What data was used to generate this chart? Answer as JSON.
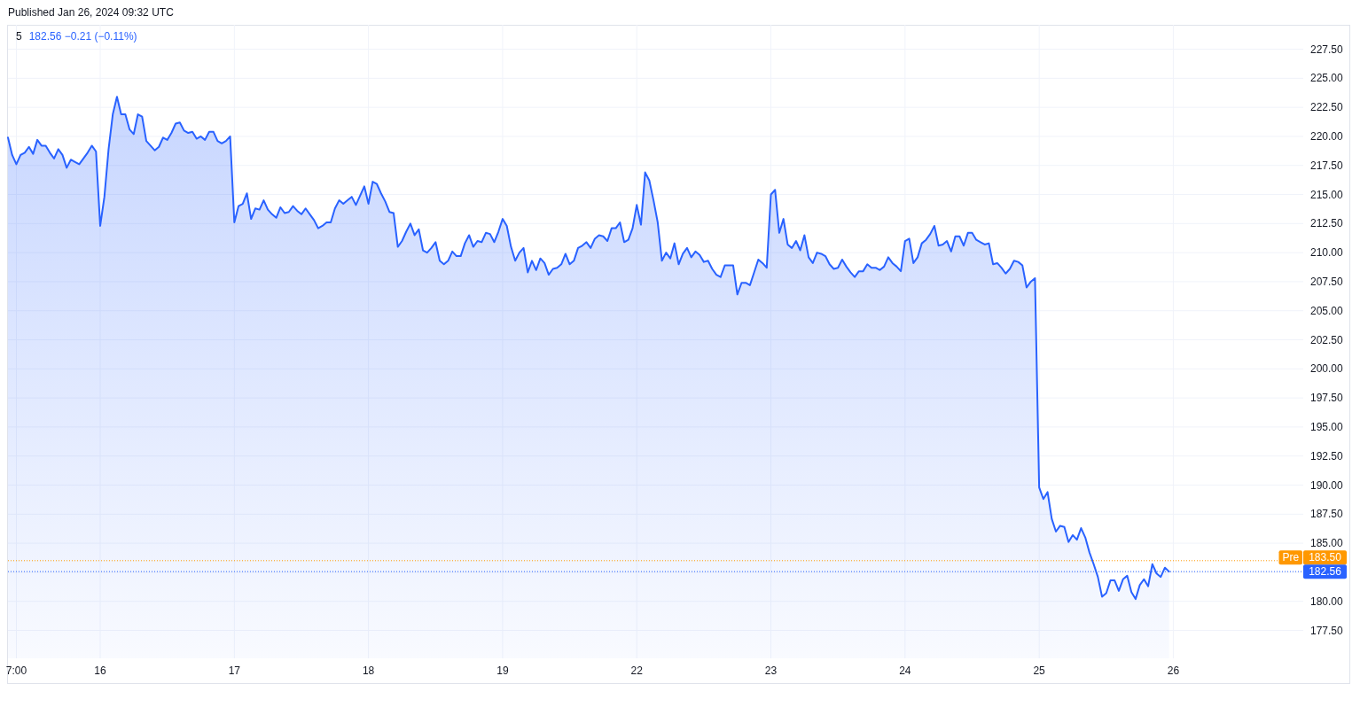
{
  "chart_data": {
    "type": "area",
    "title": "5",
    "subtitle": "182.56 −0.21 (−0.11%)",
    "annotations": [
      "Published Jan 26, 2024 09:32 UTC",
      {
        "text": "Pre",
        "y": 183.5
      }
    ],
    "color": "#2962ff",
    "grid": true,
    "ylim": [
      175.1,
      229.6
    ],
    "yticks": [
      {
        "value": 177.5,
        "label": "177.50"
      },
      {
        "value": 180,
        "label": "180.00"
      },
      {
        "value": 182.5,
        "label": null
      },
      {
        "value": 185,
        "label": "185.00"
      },
      {
        "value": 187.5,
        "label": "187.50"
      },
      {
        "value": 190,
        "label": "190.00"
      },
      {
        "value": 192.5,
        "label": "192.50"
      },
      {
        "value": 195,
        "label": "195.00"
      },
      {
        "value": 197.5,
        "label": "197.50"
      },
      {
        "value": 200,
        "label": "200.00"
      },
      {
        "value": 202.5,
        "label": "202.50"
      },
      {
        "value": 205,
        "label": "205.00"
      },
      {
        "value": 207.5,
        "label": "207.50"
      },
      {
        "value": 210,
        "label": "210.00"
      },
      {
        "value": 212.5,
        "label": "212.50"
      },
      {
        "value": 215,
        "label": "215.00"
      },
      {
        "value": 217.5,
        "label": "217.50"
      },
      {
        "value": 220,
        "label": "220.00"
      },
      {
        "value": 222.5,
        "label": "222.50"
      },
      {
        "value": 225,
        "label": "225.00"
      },
      {
        "value": 227.5,
        "label": "227.50"
      }
    ],
    "ref_lines": [
      {
        "axis": "y",
        "value": 183.5,
        "label": "183.50",
        "color": "#ff9800",
        "line_style": "dotted"
      },
      {
        "axis": "y",
        "value": 182.56,
        "label": "182.56",
        "color": "#2962ff",
        "line_style": "dotted"
      }
    ],
    "categories": [
      null,
      null,
      "7:00",
      null,
      null,
      null,
      null,
      null,
      null,
      null,
      null,
      null,
      null,
      null,
      null,
      null,
      null,
      null,
      null,
      null,
      null,
      null,
      "16",
      null,
      null,
      null,
      null,
      null,
      null,
      null,
      null,
      null,
      null,
      null,
      null,
      null,
      null,
      null,
      null,
      null,
      null,
      null,
      null,
      null,
      null,
      null,
      null,
      null,
      null,
      null,
      null,
      null,
      null,
      null,
      "17",
      null,
      null,
      null,
      null,
      null,
      null,
      null,
      null,
      null,
      null,
      null,
      null,
      null,
      null,
      null,
      null,
      null,
      null,
      null,
      null,
      null,
      null,
      null,
      null,
      null,
      null,
      null,
      null,
      null,
      null,
      null,
      "18",
      null,
      null,
      null,
      null,
      null,
      null,
      null,
      null,
      null,
      null,
      null,
      null,
      null,
      null,
      null,
      null,
      null,
      null,
      null,
      null,
      null,
      null,
      null,
      null,
      null,
      null,
      null,
      null,
      null,
      null,
      null,
      "19",
      null,
      null,
      null,
      null,
      null,
      null,
      null,
      null,
      null,
      null,
      null,
      null,
      null,
      null,
      null,
      null,
      null,
      null,
      null,
      null,
      null,
      null,
      null,
      null,
      null,
      null,
      null,
      null,
      null,
      null,
      null,
      "22",
      null,
      null,
      null,
      null,
      null,
      null,
      null,
      null,
      null,
      null,
      null,
      null,
      null,
      null,
      null,
      null,
      null,
      null,
      null,
      null,
      null,
      null,
      null,
      null,
      null,
      null,
      null,
      null,
      null,
      null,
      null,
      "23",
      null,
      null,
      null,
      null,
      null,
      null,
      null,
      null,
      null,
      null,
      null,
      null,
      null,
      null,
      null,
      null,
      null,
      null,
      null,
      null,
      null,
      null,
      null,
      null,
      null,
      null,
      null,
      null,
      null,
      null,
      null,
      "24",
      null,
      null,
      null,
      null,
      null,
      null,
      null,
      null,
      null,
      null,
      null,
      null,
      null,
      null,
      null,
      null,
      null,
      null,
      null,
      null,
      null,
      null,
      null,
      null,
      null,
      null,
      null,
      null,
      null,
      null,
      null,
      "25",
      null,
      null,
      null,
      null,
      null,
      null,
      null,
      null,
      null,
      null,
      null,
      null,
      null,
      null,
      null,
      null,
      null,
      null,
      null,
      null,
      null,
      null,
      null,
      null,
      null,
      null,
      null,
      null,
      null,
      null,
      null,
      "26",
      null,
      null,
      null,
      null,
      null,
      null,
      null,
      null,
      null,
      null,
      null,
      null,
      null,
      null,
      null,
      null,
      null,
      null,
      null,
      null,
      null,
      null,
      null,
      null,
      null,
      null,
      null,
      null,
      null,
      null,
      null
    ],
    "values": [
      219.9,
      218.4,
      217.6,
      218.4,
      218.6,
      219.1,
      218.5,
      219.7,
      219.2,
      219.2,
      218.6,
      218.1,
      218.9,
      218.4,
      217.3,
      218.0,
      217.8,
      217.6,
      218.1,
      218.6,
      219.2,
      218.7,
      212.3,
      214.8,
      218.9,
      221.9,
      223.4,
      221.9,
      221.9,
      220.6,
      220.2,
      221.9,
      221.7,
      219.6,
      219.2,
      218.8,
      219.1,
      219.9,
      219.7,
      220.3,
      221.1,
      221.2,
      220.5,
      220.3,
      220.4,
      219.8,
      220.0,
      219.7,
      220.4,
      220.4,
      219.6,
      219.4,
      219.6,
      220.0,
      212.6,
      214.0,
      214.2,
      215.1,
      212.9,
      213.8,
      213.7,
      214.5,
      213.7,
      213.3,
      213.0,
      213.9,
      213.4,
      213.5,
      214.0,
      213.6,
      213.3,
      213.8,
      213.3,
      212.8,
      212.1,
      212.3,
      212.6,
      212.6,
      213.8,
      214.5,
      214.2,
      214.5,
      214.8,
      214.1,
      214.9,
      215.7,
      214.2,
      216.1,
      215.9,
      215.1,
      214.4,
      213.5,
      213.4,
      210.5,
      211.0,
      211.8,
      212.5,
      211.5,
      212.0,
      210.2,
      210.0,
      210.4,
      210.9,
      209.3,
      209.0,
      209.3,
      210.1,
      209.7,
      209.7,
      210.8,
      211.5,
      210.5,
      211.0,
      210.9,
      211.7,
      211.6,
      210.9,
      211.8,
      212.9,
      212.3,
      210.5,
      209.3,
      210.0,
      210.4,
      208.3,
      209.3,
      208.5,
      209.5,
      209.1,
      208.1,
      208.6,
      208.7,
      209.0,
      209.9,
      209.0,
      209.3,
      210.4,
      210.6,
      210.9,
      210.4,
      211.2,
      211.5,
      211.4,
      211.0,
      212.1,
      212.1,
      212.6,
      210.9,
      211.1,
      212.1,
      214.1,
      212.4,
      216.9,
      216.2,
      214.5,
      212.6,
      209.3,
      210.0,
      209.5,
      210.8,
      209.0,
      209.9,
      210.4,
      209.6,
      210.1,
      209.8,
      209.2,
      209.3,
      208.6,
      208.1,
      207.9,
      208.9,
      208.9,
      208.9,
      206.4,
      207.4,
      207.4,
      207.2,
      208.3,
      209.4,
      209.1,
      208.7,
      215.0,
      215.4,
      211.7,
      212.9,
      210.7,
      210.4,
      211.0,
      210.2,
      211.5,
      209.6,
      209.1,
      210.0,
      209.9,
      209.7,
      209.0,
      208.6,
      208.7,
      209.4,
      208.8,
      208.3,
      207.9,
      208.4,
      208.4,
      209.0,
      208.7,
      208.7,
      208.5,
      208.8,
      209.6,
      209.1,
      208.8,
      208.4,
      211.0,
      211.2,
      209.1,
      209.6,
      210.8,
      211.1,
      211.6,
      212.3,
      210.6,
      210.7,
      211.0,
      210.1,
      211.4,
      211.4,
      210.6,
      211.7,
      211.7,
      211.1,
      210.9,
      210.7,
      210.8,
      209.0,
      209.1,
      208.7,
      208.2,
      208.6,
      209.3,
      209.2,
      208.9,
      207.0,
      207.5,
      207.8,
      189.8,
      188.8,
      189.4,
      187.1,
      186.0,
      186.5,
      186.4,
      185.1,
      185.7,
      185.3,
      186.3,
      185.5,
      184.2,
      183.2,
      182.1,
      180.4,
      180.7,
      181.8,
      181.8,
      180.9,
      181.9,
      182.2,
      180.8,
      180.2,
      181.4,
      181.9,
      181.3,
      183.2,
      182.4,
      182.1,
      182.9,
      182.56,
      null,
      null,
      null,
      null,
      null,
      null,
      null,
      null,
      null,
      null,
      null,
      null,
      null,
      null,
      null,
      null,
      null,
      null,
      null,
      null,
      null,
      null,
      null,
      null,
      null,
      null,
      null,
      null,
      null,
      null,
      null,
      null
    ]
  }
}
